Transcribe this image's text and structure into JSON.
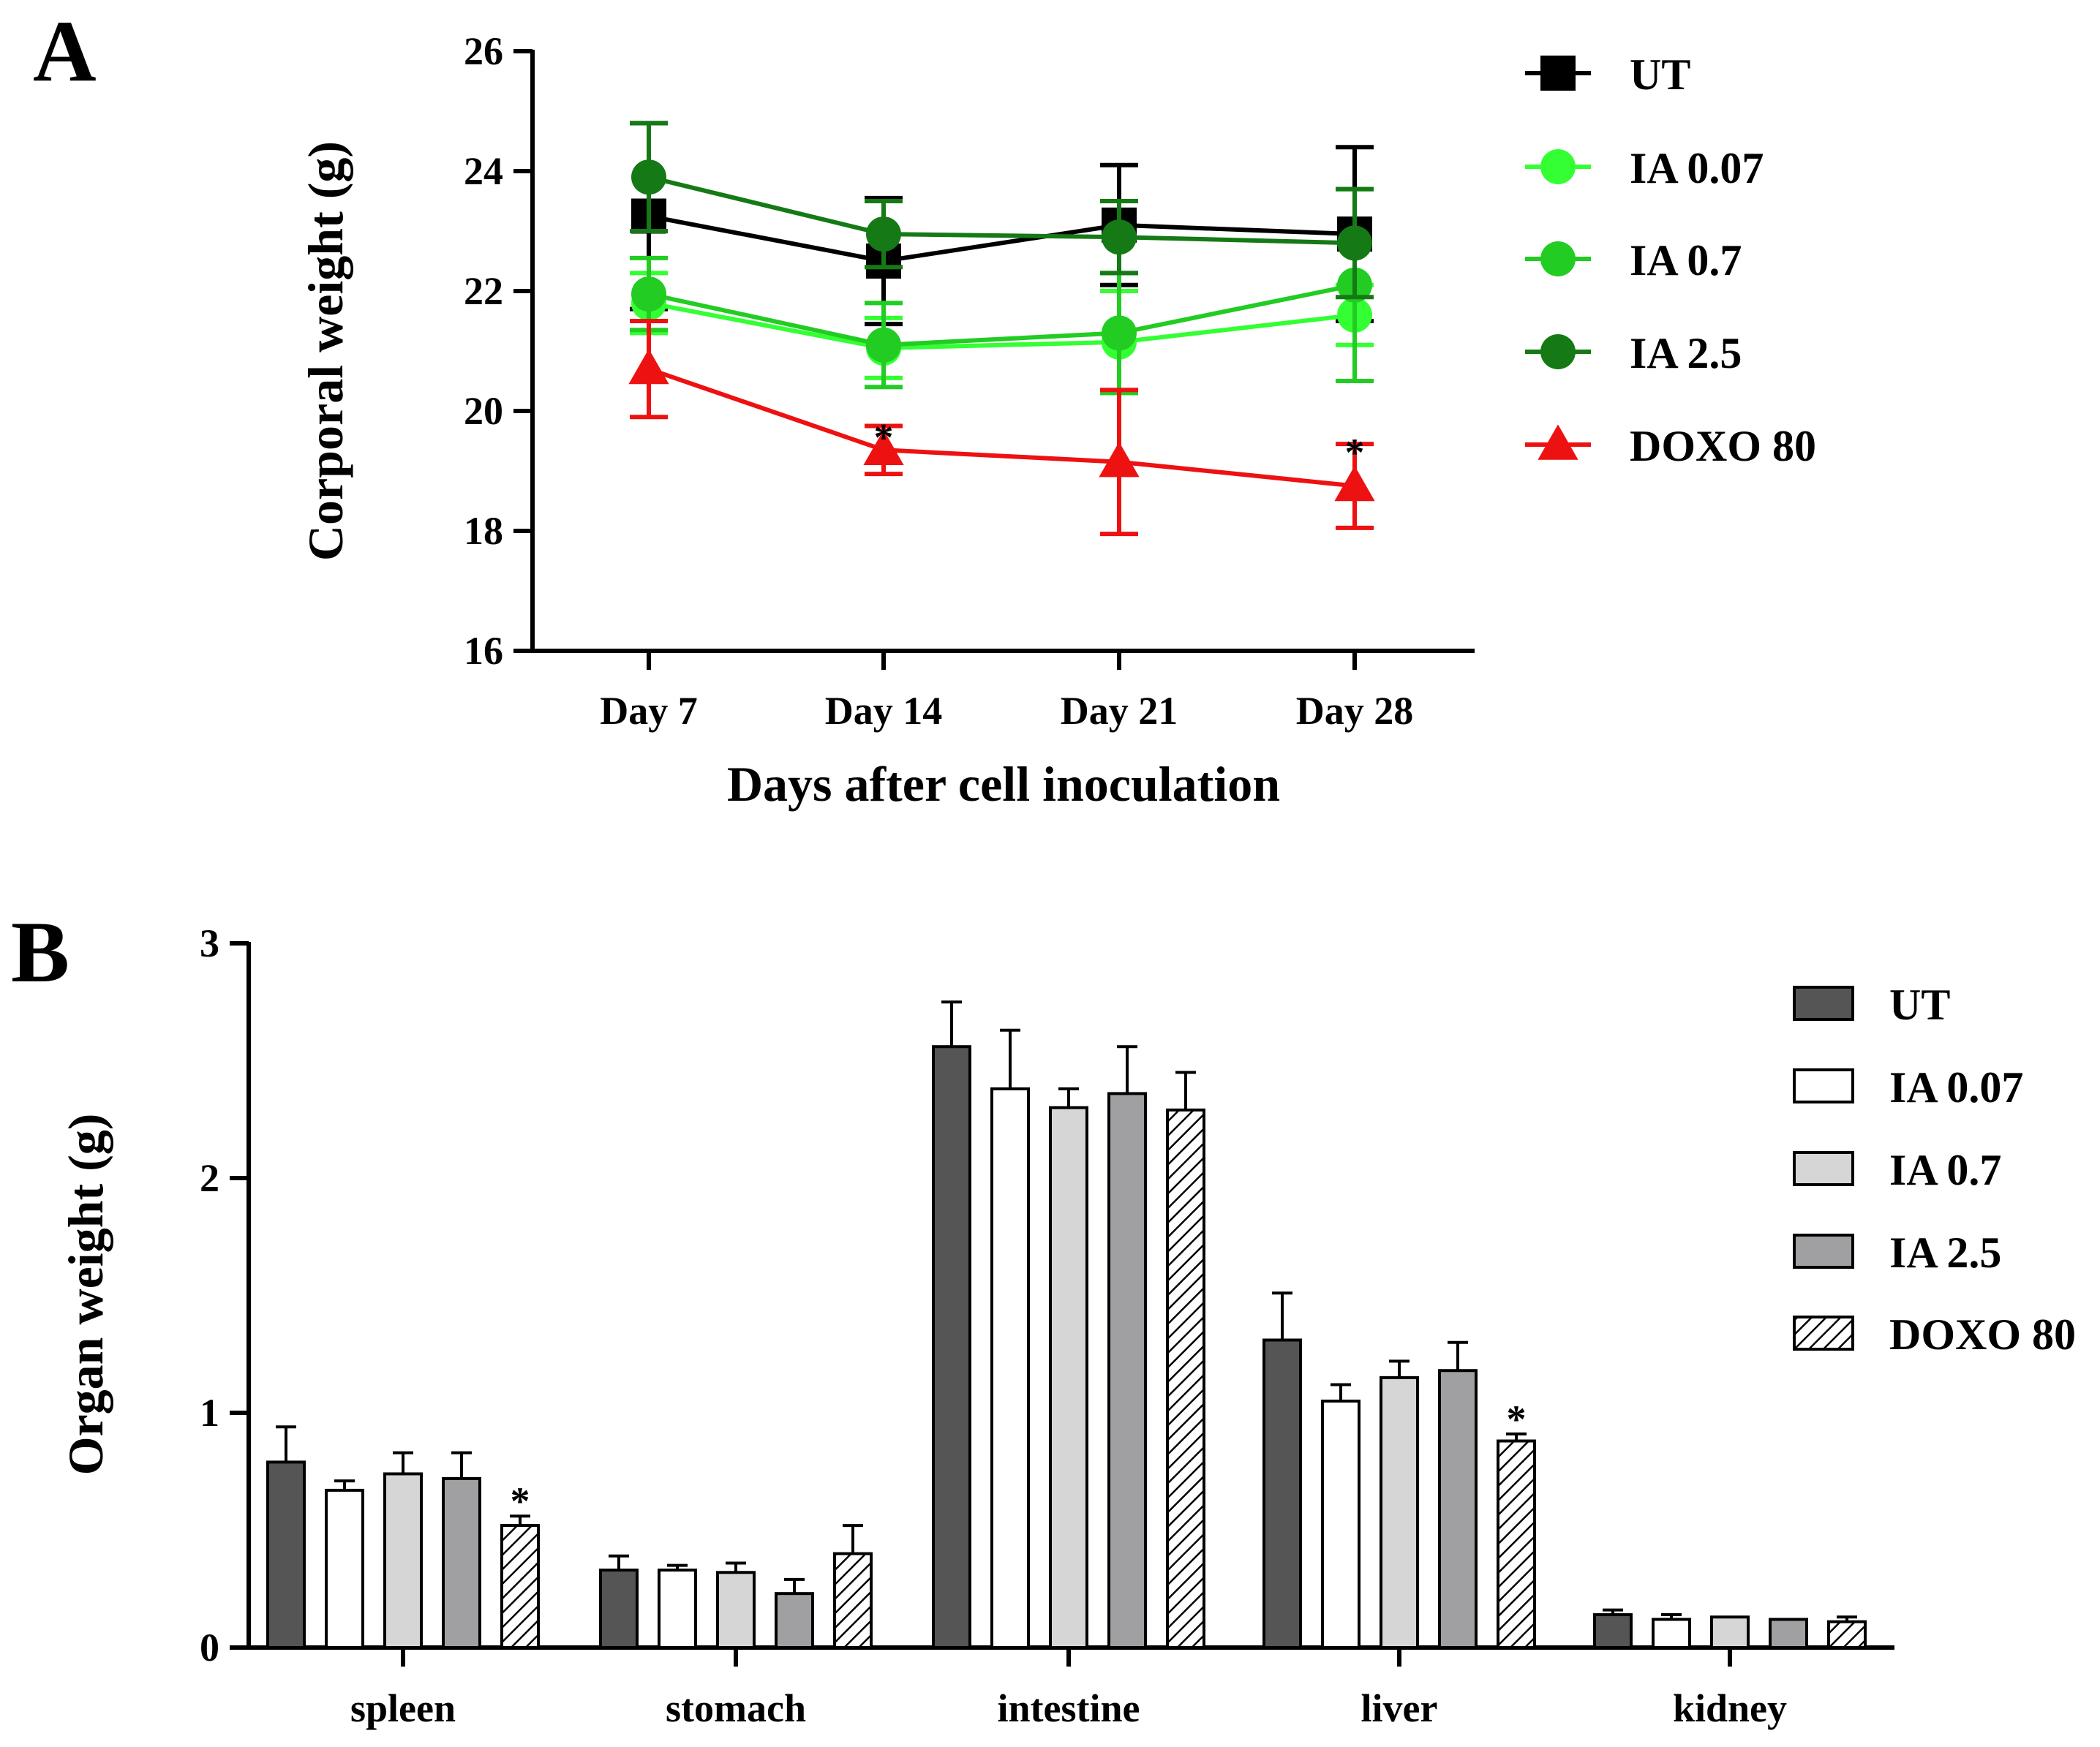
{
  "colors": {
    "UT": "#000000",
    "IA 0.07": "#33ff33",
    "IA 0.7": "#22cc22",
    "IA 2.5": "#157a15",
    "DOXO 80": "#ee1111",
    "bar_UT": "#555555",
    "bar_IA 0.07": "#ffffff",
    "bar_IA 0.7": "#d6d6d6",
    "bar_IA 2.5": "#a0a0a3",
    "bar_DOXO 80": "hatch"
  },
  "chart_data": [
    {
      "id": "A",
      "panel_label": "A",
      "type": "line",
      "categories": [
        "Day 7",
        "Day 14",
        "Day 21",
        "Day 28"
      ],
      "xlabel": "Days after cell inoculation",
      "ylabel": "Corporal weight (g)",
      "ylim": [
        16,
        26
      ],
      "yticks": [
        "16",
        "18",
        "20",
        "22",
        "24",
        "26"
      ],
      "grid": false,
      "legend_position": "right",
      "series": [
        {
          "name": "UT",
          "marker": "square",
          "values": [
            23.25,
            22.5,
            23.1,
            22.95
          ],
          "errors": [
            1.55,
            1.05,
            1.0,
            1.45
          ]
        },
        {
          "name": "IA 0.07",
          "marker": "circle",
          "values": [
            21.8,
            21.05,
            21.15,
            21.6
          ],
          "errors": [
            0.5,
            0.5,
            0.85,
            0.5
          ]
        },
        {
          "name": "IA 0.7",
          "marker": "circle",
          "values": [
            21.95,
            21.1,
            21.3,
            22.1
          ],
          "errors": [
            0.6,
            0.7,
            1.0,
            1.6
          ]
        },
        {
          "name": "IA 2.5",
          "marker": "circle",
          "values": [
            23.9,
            22.95,
            22.9,
            22.8
          ],
          "errors": [
            0.9,
            0.55,
            0.6,
            0.9
          ]
        },
        {
          "name": "DOXO 80",
          "marker": "triangle",
          "values": [
            20.7,
            19.35,
            19.15,
            18.75
          ],
          "errors": [
            0.8,
            0.4,
            1.2,
            0.7
          ]
        }
      ],
      "annotations": [
        {
          "text": "*",
          "category": "Day 14",
          "y": 19.75
        },
        {
          "text": "*",
          "category": "Day 28",
          "y": 19.5
        }
      ]
    },
    {
      "id": "B",
      "panel_label": "B",
      "type": "bar",
      "categories": [
        "spleen",
        "stomach",
        "intestine",
        "liver",
        "kidney"
      ],
      "xlabel": "",
      "ylabel": "Organ weight (g)",
      "ylim": [
        0,
        3
      ],
      "yticks": [
        "0",
        "1",
        "2",
        "3"
      ],
      "grid": false,
      "legend_position": "right",
      "series": [
        {
          "name": "UT",
          "values": [
            0.79,
            0.33,
            2.56,
            1.31,
            0.14
          ],
          "errors": [
            0.15,
            0.06,
            0.19,
            0.2,
            0.02
          ]
        },
        {
          "name": "IA 0.07",
          "values": [
            0.67,
            0.33,
            2.38,
            1.05,
            0.12
          ],
          "errors": [
            0.04,
            0.02,
            0.25,
            0.07,
            0.02
          ]
        },
        {
          "name": "IA 0.7",
          "values": [
            0.74,
            0.32,
            2.3,
            1.15,
            0.13
          ],
          "errors": [
            0.09,
            0.04,
            0.08,
            0.07,
            0.0
          ]
        },
        {
          "name": "IA 2.5",
          "values": [
            0.72,
            0.23,
            2.36,
            1.18,
            0.12
          ],
          "errors": [
            0.11,
            0.06,
            0.2,
            0.12,
            0.0
          ]
        },
        {
          "name": "DOXO 80",
          "values": [
            0.52,
            0.4,
            2.29,
            0.88,
            0.11
          ],
          "errors": [
            0.04,
            0.12,
            0.16,
            0.03,
            0.02
          ]
        }
      ],
      "annotations": [
        {
          "text": "*",
          "category": "spleen",
          "series": "DOXO 80"
        },
        {
          "text": "*",
          "category": "liver",
          "series": "DOXO 80"
        }
      ]
    }
  ]
}
